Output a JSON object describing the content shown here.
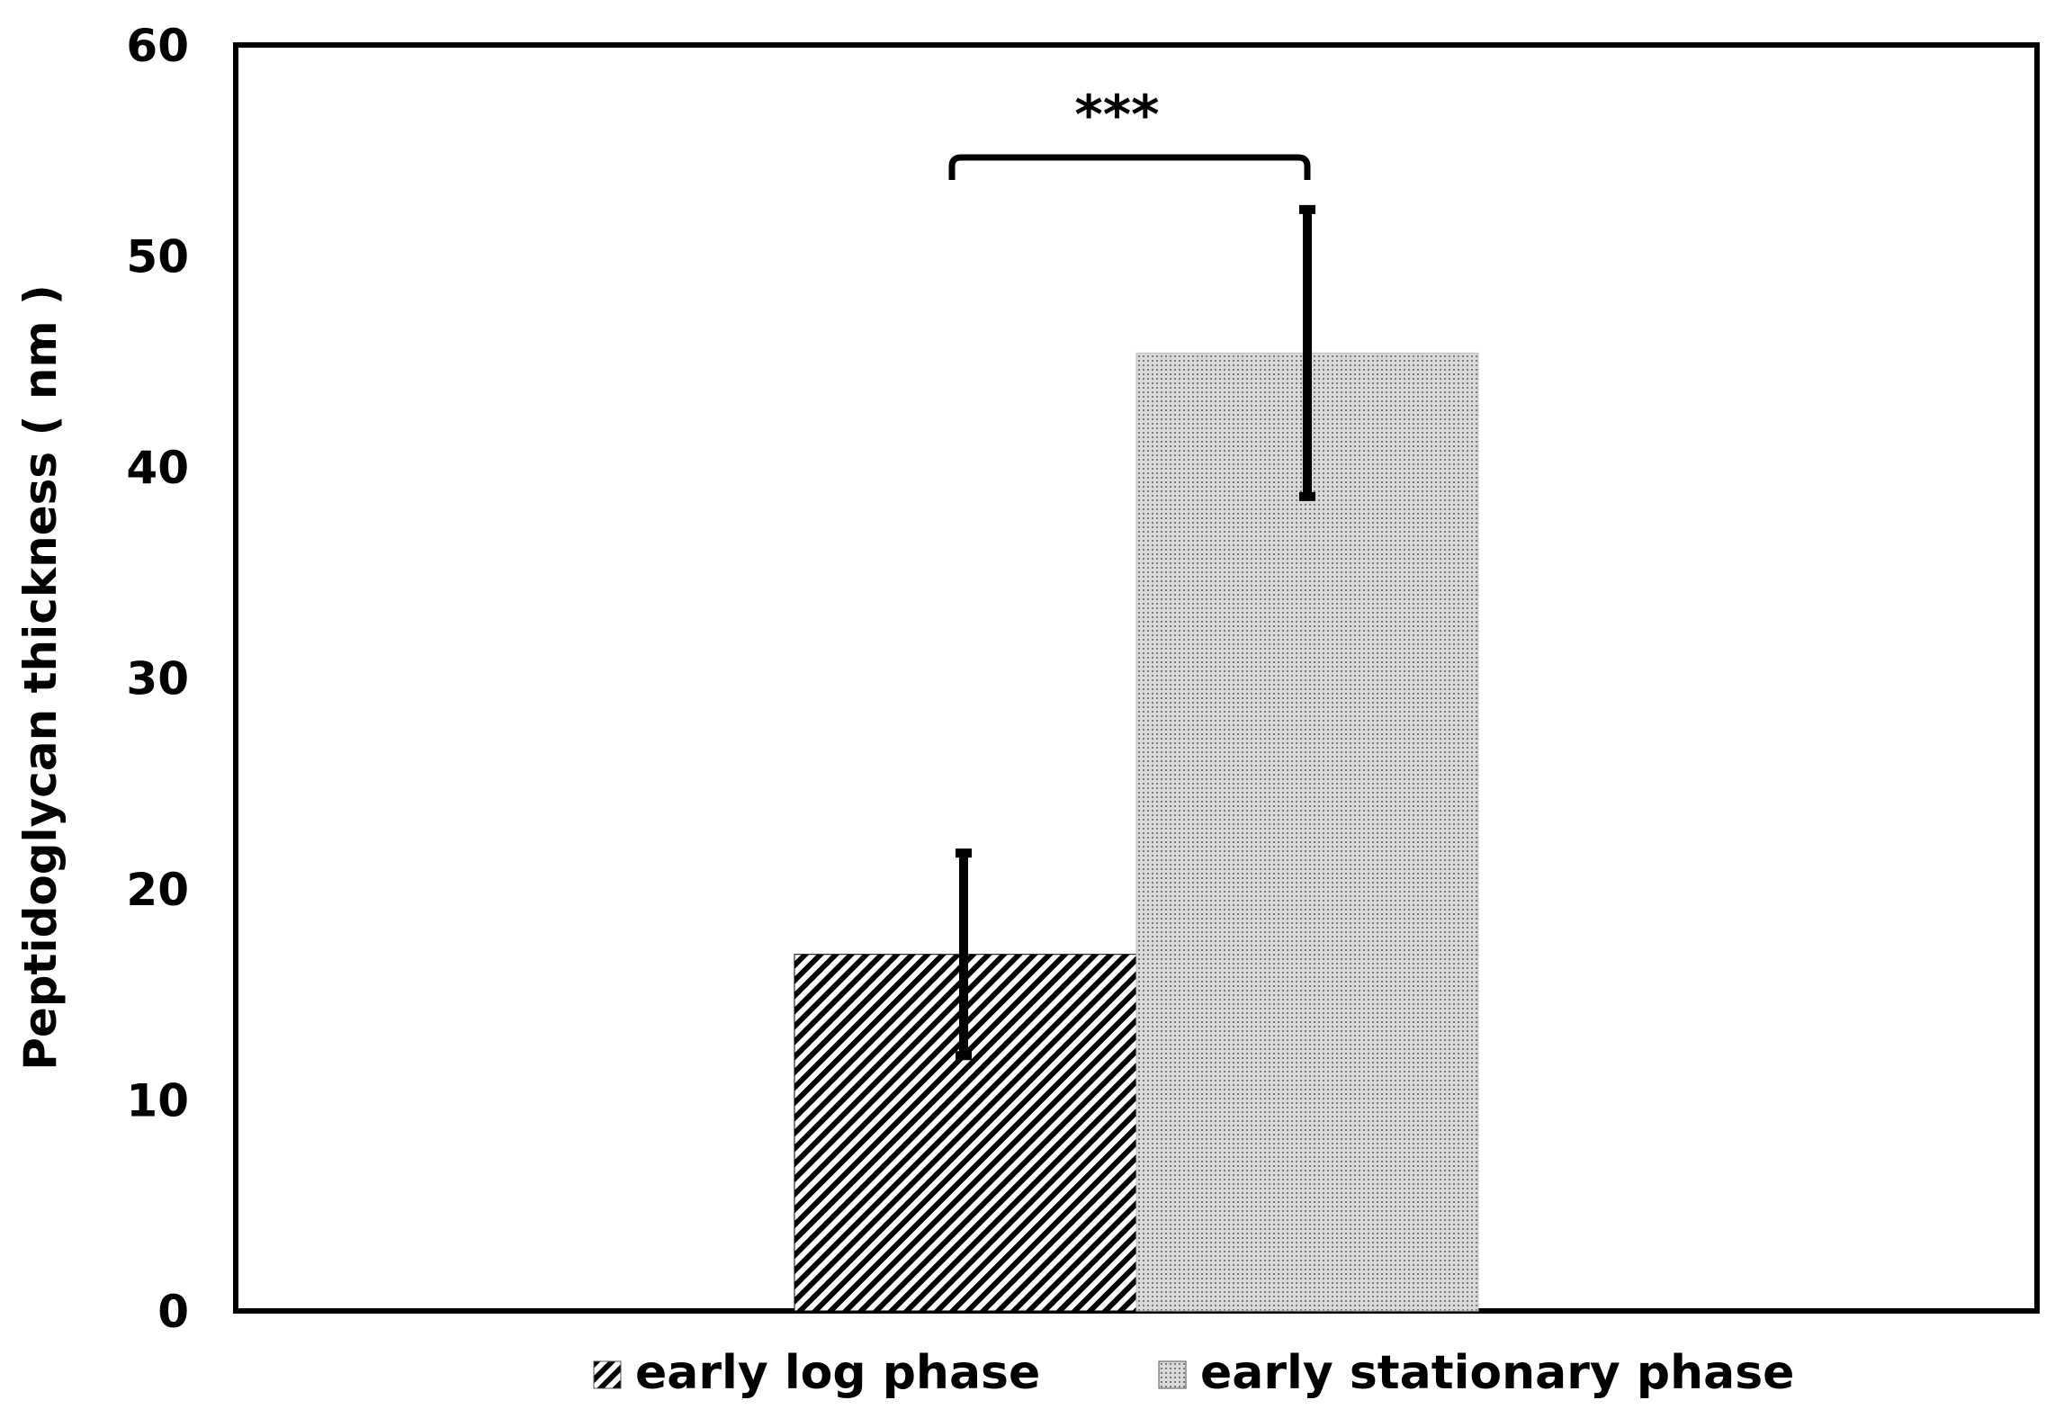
{
  "chart_data": {
    "type": "bar",
    "title": "",
    "xlabel": "",
    "ylabel": "Peptidoglycan thickness ( nm )",
    "ylim": [
      0,
      60
    ],
    "yticks": [
      0,
      10,
      20,
      30,
      40,
      50,
      60
    ],
    "grid": false,
    "legend_position": "bottom",
    "categories": [
      ""
    ],
    "series": [
      {
        "name": "early log phase",
        "values": [
          16.9
        ],
        "error": [
          4.8
        ],
        "pattern": "diagonal-hatch",
        "color": "#000000"
      },
      {
        "name": "early stationary phase",
        "values": [
          45.4
        ],
        "error": [
          6.8
        ],
        "pattern": "dotted",
        "color": "#9a9a9a"
      }
    ],
    "annotations": [
      {
        "text": "***",
        "between": [
          "early log phase",
          "early stationary phase"
        ]
      }
    ]
  }
}
